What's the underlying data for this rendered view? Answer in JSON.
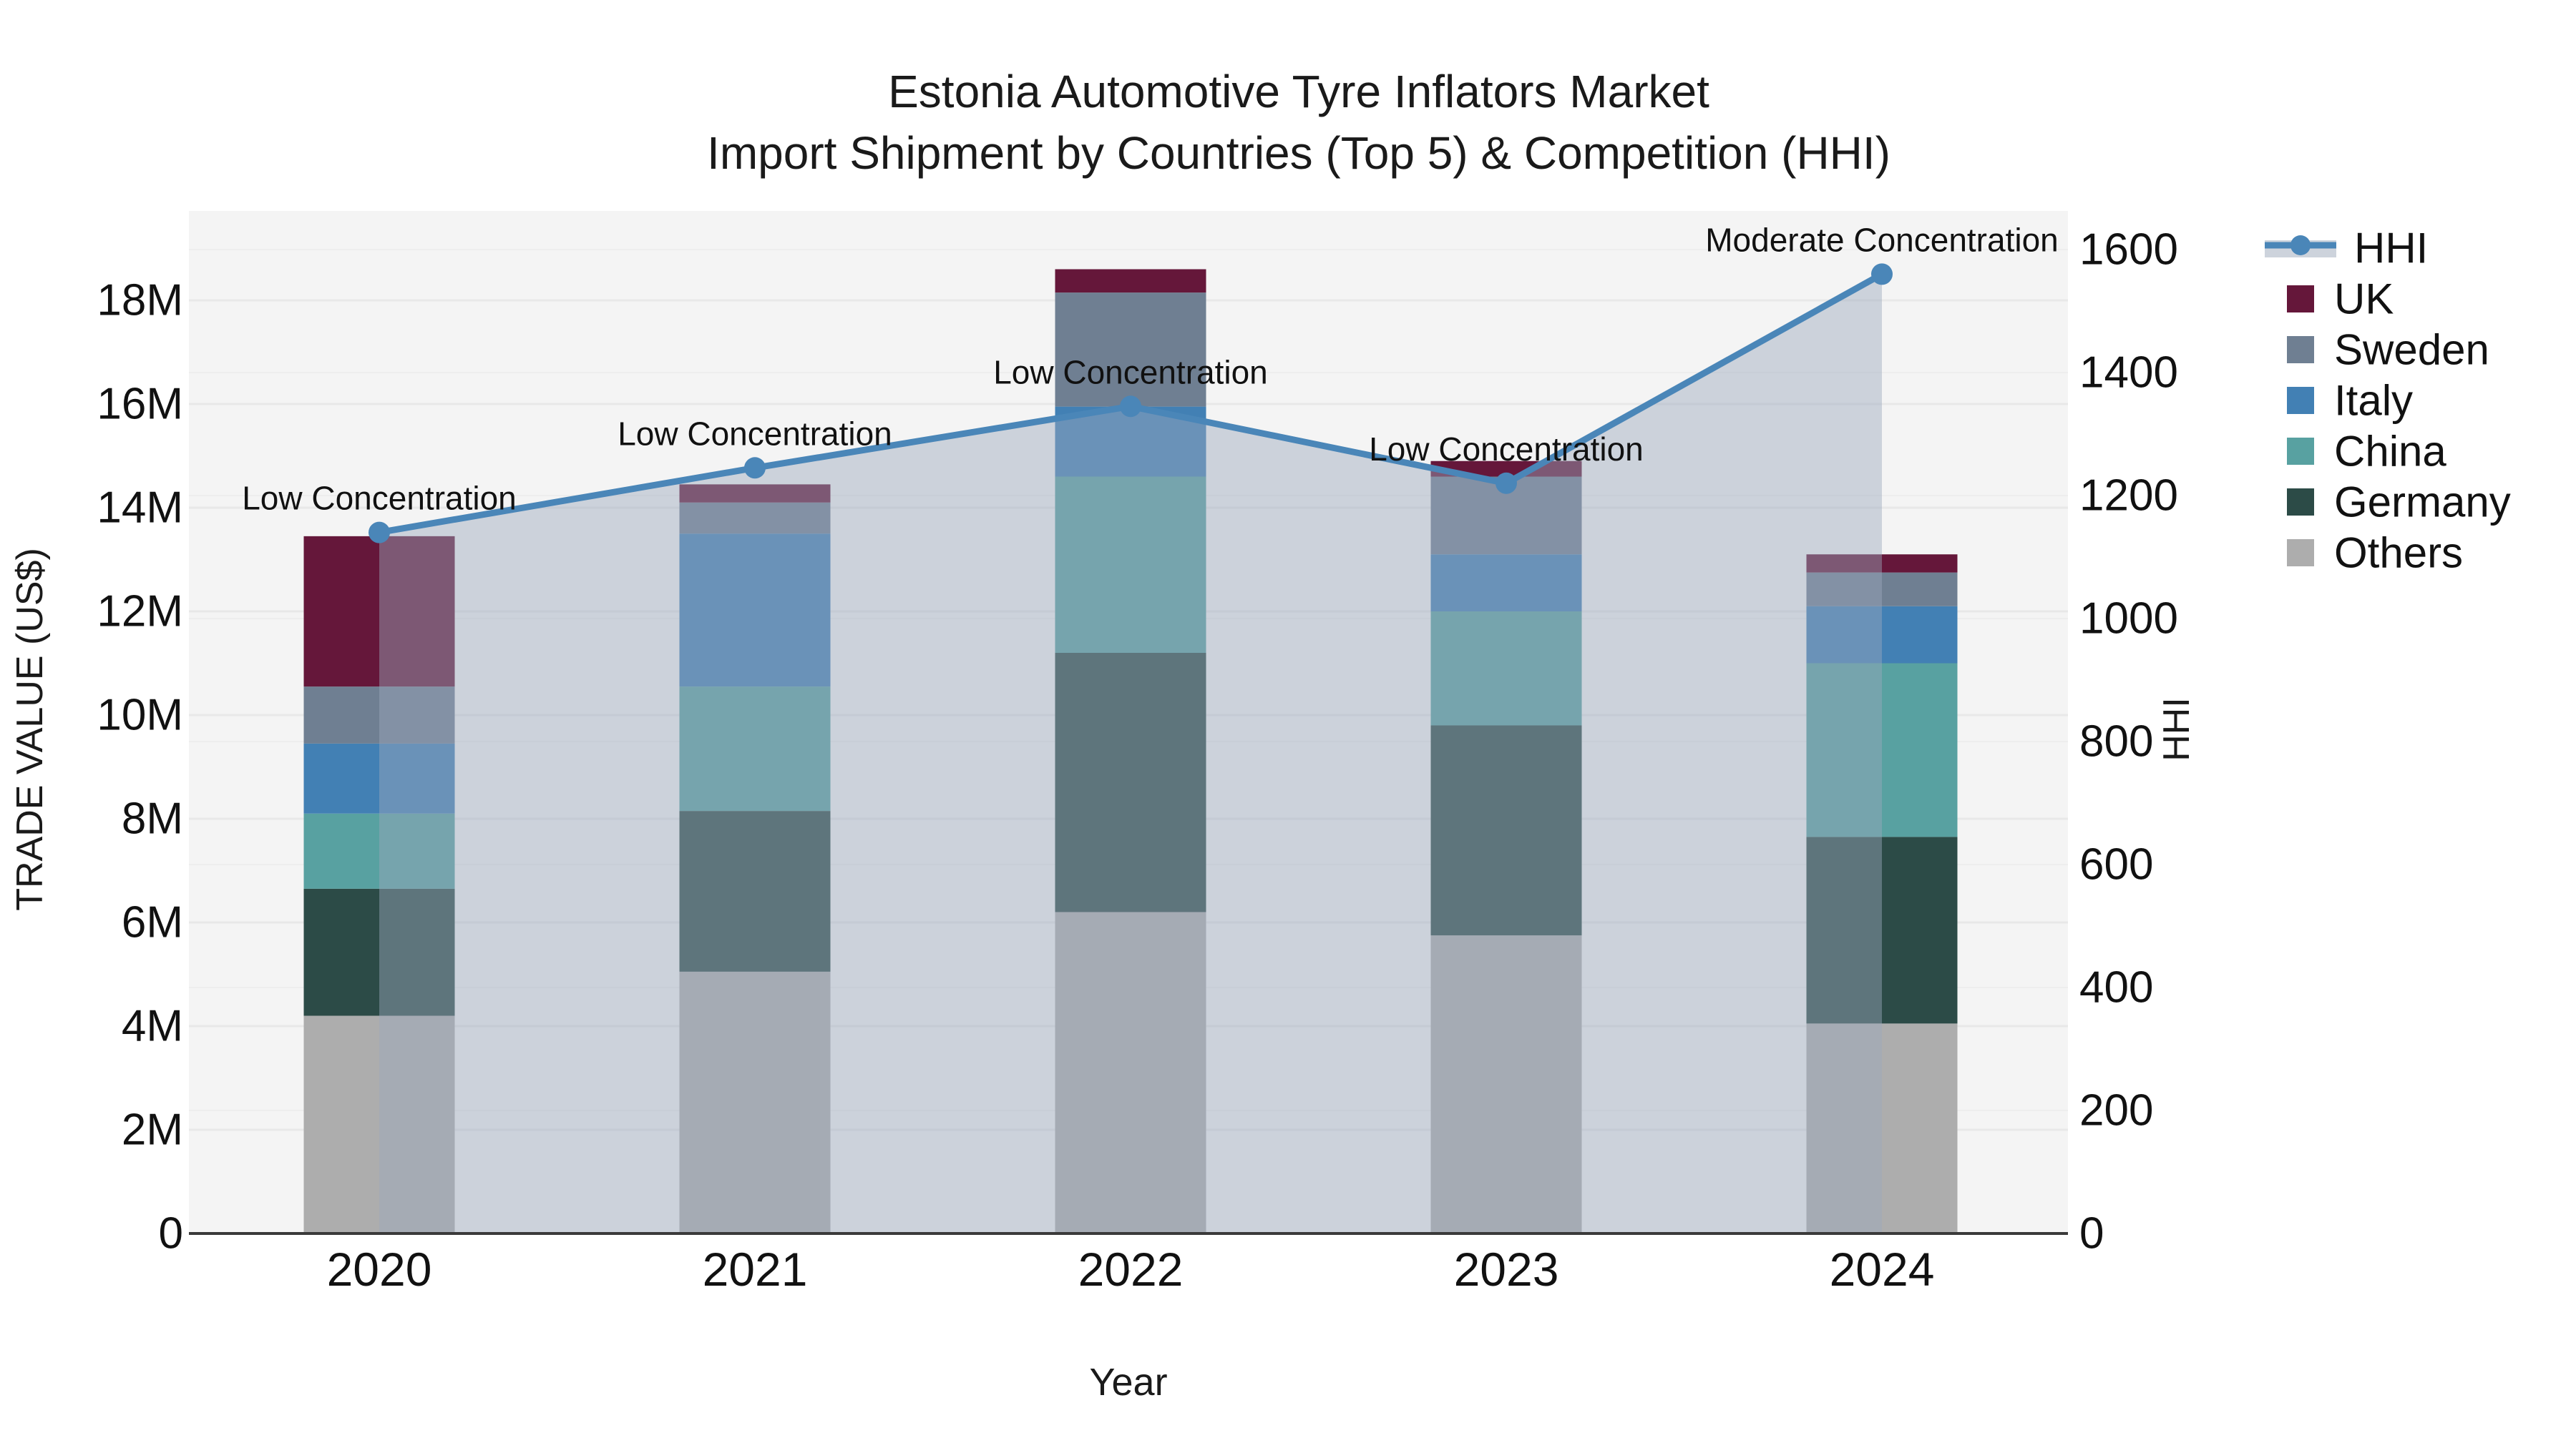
{
  "figure": {
    "title_line1": "Estonia Automotive Tyre Inflators Market",
    "title_line2": "Import Shipment by Countries (Top 5) & Competition (HHI)",
    "x_axis_title": "Year",
    "y_left_axis_title": "TRADE VALUE (US$)",
    "y_right_axis_title": "HHI"
  },
  "chart_data": {
    "type": "bar",
    "subtype": "stacked-bars-with-hhi-line-overlay",
    "title": "Estonia Automotive Tyre Inflators Market — Import Shipment by Countries (Top 5) & Competition (HHI)",
    "categories": [
      "2020",
      "2021",
      "2022",
      "2023",
      "2024"
    ],
    "bar_value_unit": "million US$",
    "stack_order_bottom_to_top": [
      "Others",
      "Germany",
      "China",
      "Italy",
      "Sweden",
      "UK"
    ],
    "series": [
      {
        "name": "Others",
        "color": "#ADADAD",
        "values": [
          4.2,
          5.05,
          6.2,
          5.75,
          4.05
        ]
      },
      {
        "name": "Germany",
        "color": "#2C4B47",
        "values": [
          2.45,
          3.1,
          5.0,
          4.05,
          3.6
        ]
      },
      {
        "name": "China",
        "color": "#58A1A1",
        "values": [
          1.45,
          2.4,
          3.4,
          2.2,
          3.35
        ]
      },
      {
        "name": "Italy",
        "color": "#4280B4",
        "values": [
          1.35,
          2.95,
          1.35,
          1.1,
          1.1
        ]
      },
      {
        "name": "Sweden",
        "color": "#6F7F92",
        "values": [
          1.1,
          0.6,
          2.2,
          1.5,
          0.65
        ]
      },
      {
        "name": "UK",
        "color": "#65173A",
        "values": [
          2.9,
          0.35,
          0.45,
          0.3,
          0.35
        ]
      }
    ],
    "bar_totals_millions": [
      13.45,
      14.45,
      18.6,
      14.9,
      13.1
    ],
    "line_series": {
      "name": "HHI",
      "color": "#4A86B8",
      "area_fill": "rgba(156,168,188,0.45)",
      "values": [
        1140,
        1245,
        1345,
        1220,
        1560
      ]
    },
    "annotations": [
      {
        "category": "2020",
        "text": "Low Concentration"
      },
      {
        "category": "2021",
        "text": "Low Concentration"
      },
      {
        "category": "2022",
        "text": "Low Concentration"
      },
      {
        "category": "2023",
        "text": "Low Concentration"
      },
      {
        "category": "2024",
        "text": "Moderate Concentration"
      }
    ],
    "x_axis": {
      "title": "Year",
      "tick_labels": [
        "2020",
        "2021",
        "2022",
        "2023",
        "2024"
      ]
    },
    "y_left_axis": {
      "title": "TRADE VALUE (US$)",
      "range_millions": [
        0,
        19.7
      ],
      "tick_values_millions": [
        0,
        2,
        4,
        6,
        8,
        10,
        12,
        14,
        16,
        18
      ],
      "tick_labels": [
        "0",
        "2M",
        "4M",
        "6M",
        "8M",
        "10M",
        "12M",
        "14M",
        "16M",
        "18M"
      ]
    },
    "y_right_axis": {
      "title": "HHI",
      "range": [
        0,
        1663
      ],
      "tick_values": [
        0,
        200,
        400,
        600,
        800,
        1000,
        1200,
        1400,
        1600
      ],
      "tick_labels": [
        "0",
        "200",
        "400",
        "600",
        "800",
        "1000",
        "1200",
        "1400",
        "1600"
      ]
    },
    "legend": {
      "order": [
        "HHI",
        "UK",
        "Sweden",
        "Italy",
        "China",
        "Germany",
        "Others"
      ],
      "position": "right"
    },
    "grid": true,
    "plot_background": "#F4F4F4",
    "gridline_color": "#E8E8E8",
    "axis_line_color": "#3A3A3A",
    "text_color": "#111111"
  }
}
